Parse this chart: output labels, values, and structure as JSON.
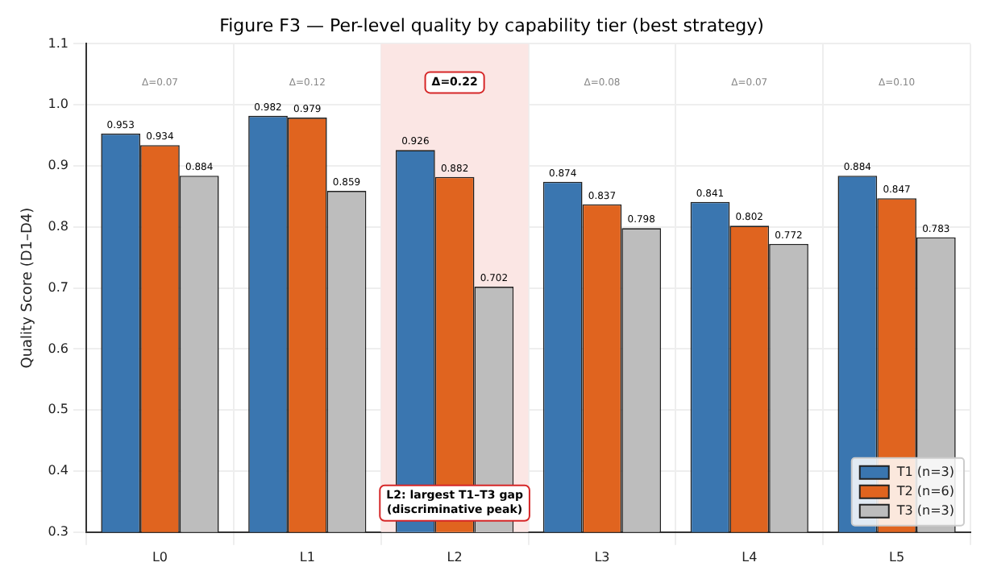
{
  "chart_data": {
    "type": "bar",
    "title": "Figure F3 — Per-level quality by capability tier (best strategy)",
    "ylabel": "Quality Score (D1–D4)",
    "categories": [
      "L0",
      "L1",
      "L2",
      "L3",
      "L4",
      "L5"
    ],
    "series": [
      {
        "name": "T1 (n=3)",
        "color": "#3a76b0",
        "values": [
          0.953,
          0.982,
          0.926,
          0.874,
          0.841,
          0.884
        ]
      },
      {
        "name": "T2 (n=6)",
        "color": "#e0641f",
        "values": [
          0.934,
          0.979,
          0.882,
          0.837,
          0.802,
          0.847
        ]
      },
      {
        "name": "T3 (n=3)",
        "color": "#bdbdbd",
        "values": [
          0.884,
          0.859,
          0.702,
          0.798,
          0.772,
          0.783
        ]
      }
    ],
    "ylim": [
      0.3,
      1.1
    ],
    "yticks": [
      0.3,
      0.4,
      0.5,
      0.6,
      0.7,
      0.8,
      0.9,
      {
        "value": 1.0,
        "label": "1.0"
      },
      {
        "value": 1.1,
        "label": "1.1"
      }
    ],
    "grid": true,
    "legend": "bottom right",
    "data_labels": true,
    "bands": [
      {
        "axis": "x",
        "from": "L2",
        "to": "L2",
        "color": "#fbe6e4"
      }
    ],
    "annotations": [
      "Δ=0.07",
      "Δ=0.12",
      "Δ=0.22",
      "Δ=0.08",
      "Δ=0.07",
      "Δ=0.10",
      "L2: largest T1–T3 gap\n(discriminative peak)"
    ]
  }
}
